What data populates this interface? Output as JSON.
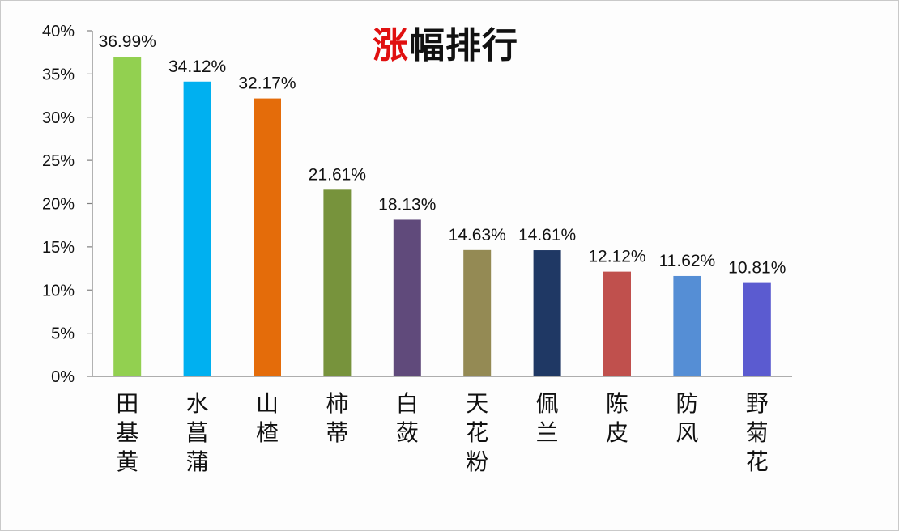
{
  "title_accent": "涨",
  "title_rest": "幅排行",
  "chart_data": {
    "type": "bar",
    "title": "涨幅排行",
    "categories": [
      "田基黄",
      "水菖蒲",
      "山楂",
      "柿蒂",
      "白蔹",
      "天花粉",
      "佩兰",
      "陈皮",
      "防风",
      "野菊花"
    ],
    "values": [
      36.99,
      34.12,
      32.17,
      21.61,
      18.13,
      14.63,
      14.61,
      12.12,
      11.62,
      10.81
    ],
    "data_labels": [
      "36.99%",
      "34.12%",
      "32.17%",
      "21.61%",
      "18.13%",
      "14.63%",
      "14.61%",
      "12.12%",
      "11.62%",
      "10.81%"
    ],
    "bar_colors": [
      "#92d050",
      "#00b0f0",
      "#e46c0a",
      "#77933c",
      "#604a7b",
      "#948a54",
      "#1f3864",
      "#c0504d",
      "#558ed5",
      "#5b5bd0"
    ],
    "yticks": [
      "0%",
      "5%",
      "10%",
      "15%",
      "20%",
      "25%",
      "30%",
      "35%",
      "40%"
    ],
    "ylim": [
      0,
      40
    ],
    "ystep": 5,
    "grid": false,
    "legend": "none"
  }
}
